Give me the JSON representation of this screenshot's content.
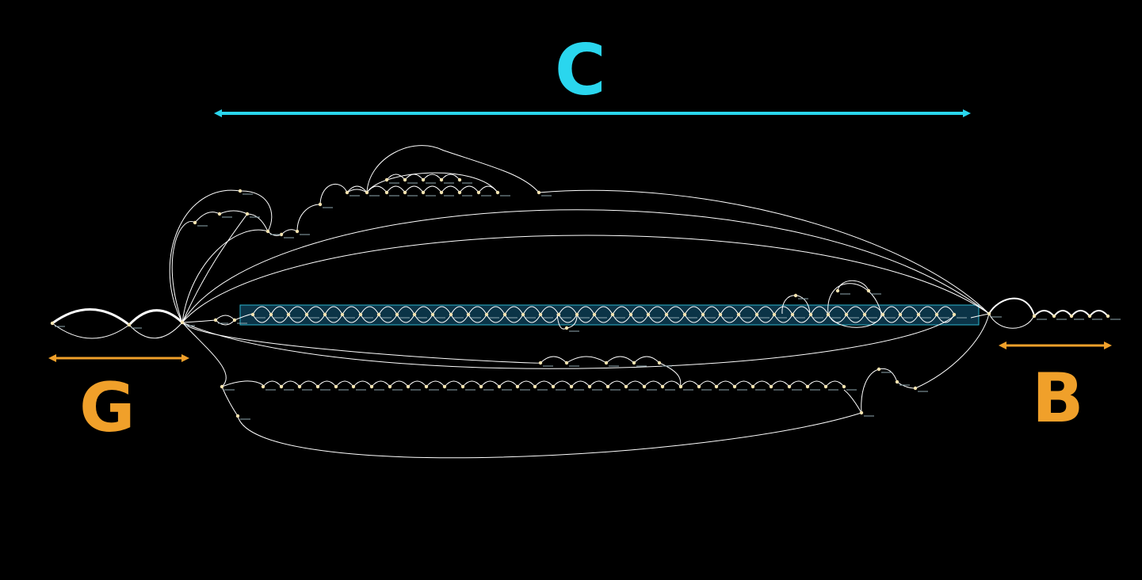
{
  "diagram": {
    "background": "#000000",
    "edge_color": "#ffffff",
    "node_color": "#f5e3b0",
    "highlight_fill": "#0b3447",
    "highlight_stroke": "#2bb6cf"
  },
  "regions": [
    {
      "id": "c",
      "label": "C",
      "color": "#2ad6ee"
    },
    {
      "id": "g",
      "label": "G",
      "color": "#f0a02a"
    },
    {
      "id": "b",
      "label": "B",
      "color": "#f0a02a"
    }
  ]
}
